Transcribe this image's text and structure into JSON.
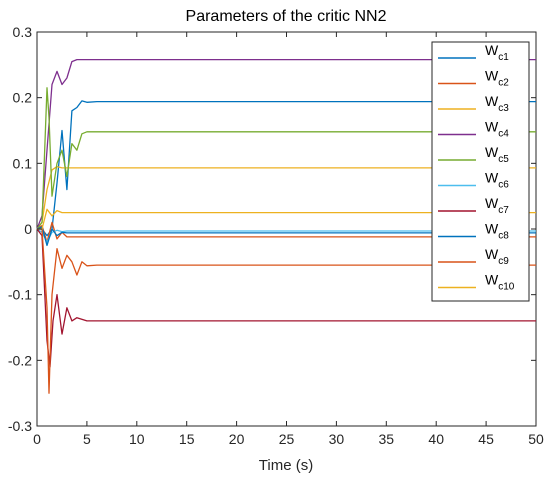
{
  "chart_data": {
    "type": "line",
    "title": "Parameters of the critic NN2",
    "xlabel": "Time (s)",
    "ylabel": "",
    "xlim": [
      0,
      50
    ],
    "ylim": [
      -0.3,
      0.3
    ],
    "xticks": [
      0,
      5,
      10,
      15,
      20,
      25,
      30,
      35,
      40,
      45,
      50
    ],
    "yticks": [
      -0.3,
      -0.2,
      -0.1,
      0,
      0.1,
      0.2,
      0.3
    ],
    "xtick_labels": [
      "0",
      "5",
      "10",
      "15",
      "20",
      "25",
      "30",
      "35",
      "40",
      "45",
      "50"
    ],
    "ytick_labels": [
      "-0.3",
      "-0.2",
      "-0.1",
      "0",
      "0.1",
      "0.2",
      "0.3"
    ],
    "grid": false,
    "legend_position": "top-right",
    "series": [
      {
        "name": "Wc1",
        "base": "W",
        "sub": "c1",
        "color": "#0072BD",
        "x": [
          0,
          0.5,
          1.0,
          1.5,
          2.0,
          2.5,
          3.0,
          3.5,
          4.0,
          4.5,
          5.0,
          6.0,
          50
        ],
        "y": [
          0,
          0.0,
          -0.01,
          0.0,
          0.07,
          0.15,
          0.06,
          0.18,
          0.185,
          0.195,
          0.193,
          0.194,
          0.194
        ]
      },
      {
        "name": "Wc2",
        "base": "W",
        "sub": "c2",
        "color": "#D95319",
        "x": [
          0,
          0.5,
          1.0,
          1.5,
          2.0,
          2.5,
          3.0,
          4.0,
          50
        ],
        "y": [
          0,
          0.005,
          -0.02,
          0.01,
          -0.015,
          -0.005,
          -0.012,
          -0.012,
          -0.012
        ]
      },
      {
        "name": "Wc3",
        "base": "W",
        "sub": "c3",
        "color": "#EDB120",
        "x": [
          0,
          0.5,
          1.0,
          1.5,
          2.0,
          2.5,
          3.0,
          4.0,
          50
        ],
        "y": [
          0,
          0.01,
          0.06,
          0.09,
          0.095,
          0.093,
          0.093,
          0.093,
          0.093
        ]
      },
      {
        "name": "Wc4",
        "base": "W",
        "sub": "c4",
        "color": "#7E2F8E",
        "x": [
          0,
          0.5,
          1.0,
          1.5,
          2.0,
          2.5,
          3.0,
          3.5,
          4.0,
          5.0,
          50
        ],
        "y": [
          0,
          0.02,
          0.12,
          0.22,
          0.24,
          0.22,
          0.23,
          0.255,
          0.258,
          0.258,
          0.258
        ]
      },
      {
        "name": "Wc5",
        "base": "W",
        "sub": "c5",
        "color": "#77AC30",
        "x": [
          0,
          0.5,
          1.0,
          1.2,
          1.5,
          2.0,
          2.5,
          3.0,
          3.5,
          4.0,
          4.5,
          5.0,
          6.0,
          50
        ],
        "y": [
          0,
          0.01,
          0.215,
          0.17,
          0.05,
          0.1,
          0.12,
          0.08,
          0.13,
          0.12,
          0.145,
          0.148,
          0.148,
          0.148
        ]
      },
      {
        "name": "Wc6",
        "base": "W",
        "sub": "c6",
        "color": "#4DBEEE",
        "x": [
          0,
          0.5,
          1.0,
          1.5,
          2.0,
          2.5,
          3.0,
          4.0,
          50
        ],
        "y": [
          0,
          -0.005,
          -0.02,
          -0.005,
          -0.002,
          -0.004,
          -0.003,
          -0.003,
          -0.003
        ]
      },
      {
        "name": "Wc7",
        "base": "W",
        "sub": "c7",
        "color": "#A2142F",
        "x": [
          0,
          0.5,
          1.0,
          1.3,
          1.6,
          2.0,
          2.5,
          3.0,
          3.5,
          4.0,
          5.0,
          6.0,
          50
        ],
        "y": [
          0,
          -0.01,
          -0.17,
          -0.21,
          -0.14,
          -0.1,
          -0.16,
          -0.12,
          -0.14,
          -0.135,
          -0.14,
          -0.14,
          -0.14
        ]
      },
      {
        "name": "Wc8",
        "base": "W",
        "sub": "c8",
        "color": "#0072BD",
        "x": [
          0,
          0.5,
          1.0,
          1.5,
          2.0,
          2.5,
          3.0,
          4.0,
          50
        ],
        "y": [
          0,
          0.003,
          -0.025,
          0.0,
          -0.01,
          -0.005,
          -0.006,
          -0.006,
          -0.006
        ]
      },
      {
        "name": "Wc9",
        "base": "W",
        "sub": "c9",
        "color": "#D95319",
        "x": [
          0,
          0.5,
          1.0,
          1.2,
          1.5,
          2.0,
          2.5,
          3.0,
          3.5,
          4.0,
          4.5,
          5.0,
          6.0,
          50
        ],
        "y": [
          0,
          0.0,
          -0.12,
          -0.25,
          -0.1,
          -0.03,
          -0.06,
          -0.04,
          -0.05,
          -0.07,
          -0.05,
          -0.056,
          -0.055,
          -0.055
        ]
      },
      {
        "name": "Wc10",
        "base": "W",
        "sub": "c10",
        "color": "#EDB120",
        "x": [
          0,
          0.5,
          1.0,
          1.5,
          2.0,
          2.5,
          3.0,
          4.0,
          50
        ],
        "y": [
          0,
          0.0,
          0.03,
          0.02,
          0.028,
          0.025,
          0.025,
          0.025,
          0.025
        ]
      }
    ]
  }
}
